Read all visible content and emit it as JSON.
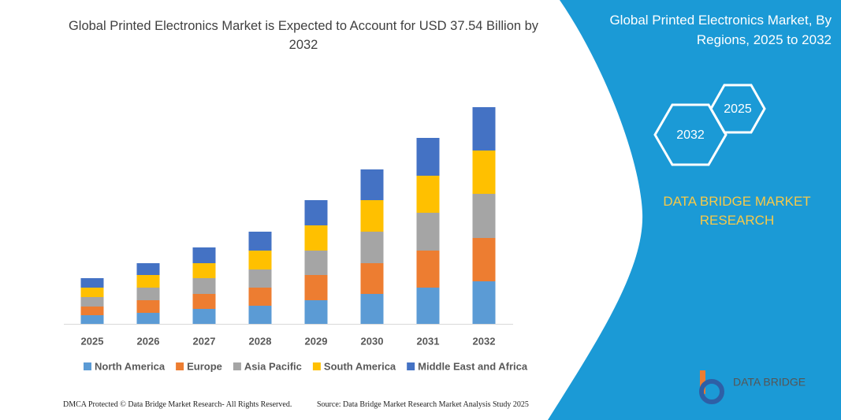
{
  "chart_data": {
    "type": "bar",
    "stacked": true,
    "title": "Global Printed Electronics Market is Expected to Account for USD 37.54 Billion by 2032",
    "categories": [
      "2025",
      "2026",
      "2027",
      "2028",
      "2029",
      "2030",
      "2031",
      "2032"
    ],
    "series": [
      {
        "name": "North America",
        "color": "#5b9bd5",
        "values": [
          11,
          14,
          19,
          23,
          30,
          38,
          46,
          54
        ]
      },
      {
        "name": "Europe",
        "color": "#ed7d31",
        "values": [
          11,
          16,
          19,
          23,
          32,
          39,
          47,
          55
        ]
      },
      {
        "name": "Asia Pacific",
        "color": "#a5a5a5",
        "values": [
          12,
          16,
          20,
          23,
          31,
          40,
          48,
          56
        ]
      },
      {
        "name": "South America",
        "color": "#ffc000",
        "values": [
          12,
          16,
          19,
          24,
          32,
          40,
          47,
          55
        ]
      },
      {
        "name": "Middle East and Africa",
        "color": "#4472c4",
        "values": [
          12,
          15,
          20,
          24,
          32,
          39,
          48,
          55
        ]
      }
    ],
    "legend": "bottom"
  },
  "panel": {
    "title": "Global Printed Electronics Market, By Regions, 2025 to 2032",
    "hex_small": "2025",
    "hex_large": "2032",
    "brand": "DATA BRIDGE MARKET RESEARCH",
    "logo": "DATA BRIDGE"
  },
  "footer": {
    "left": "DMCA Protected © Data Bridge Market Research-  All Rights Reserved.",
    "right": "Source: Data Bridge Market Research  Market Analysis Study 2025"
  }
}
